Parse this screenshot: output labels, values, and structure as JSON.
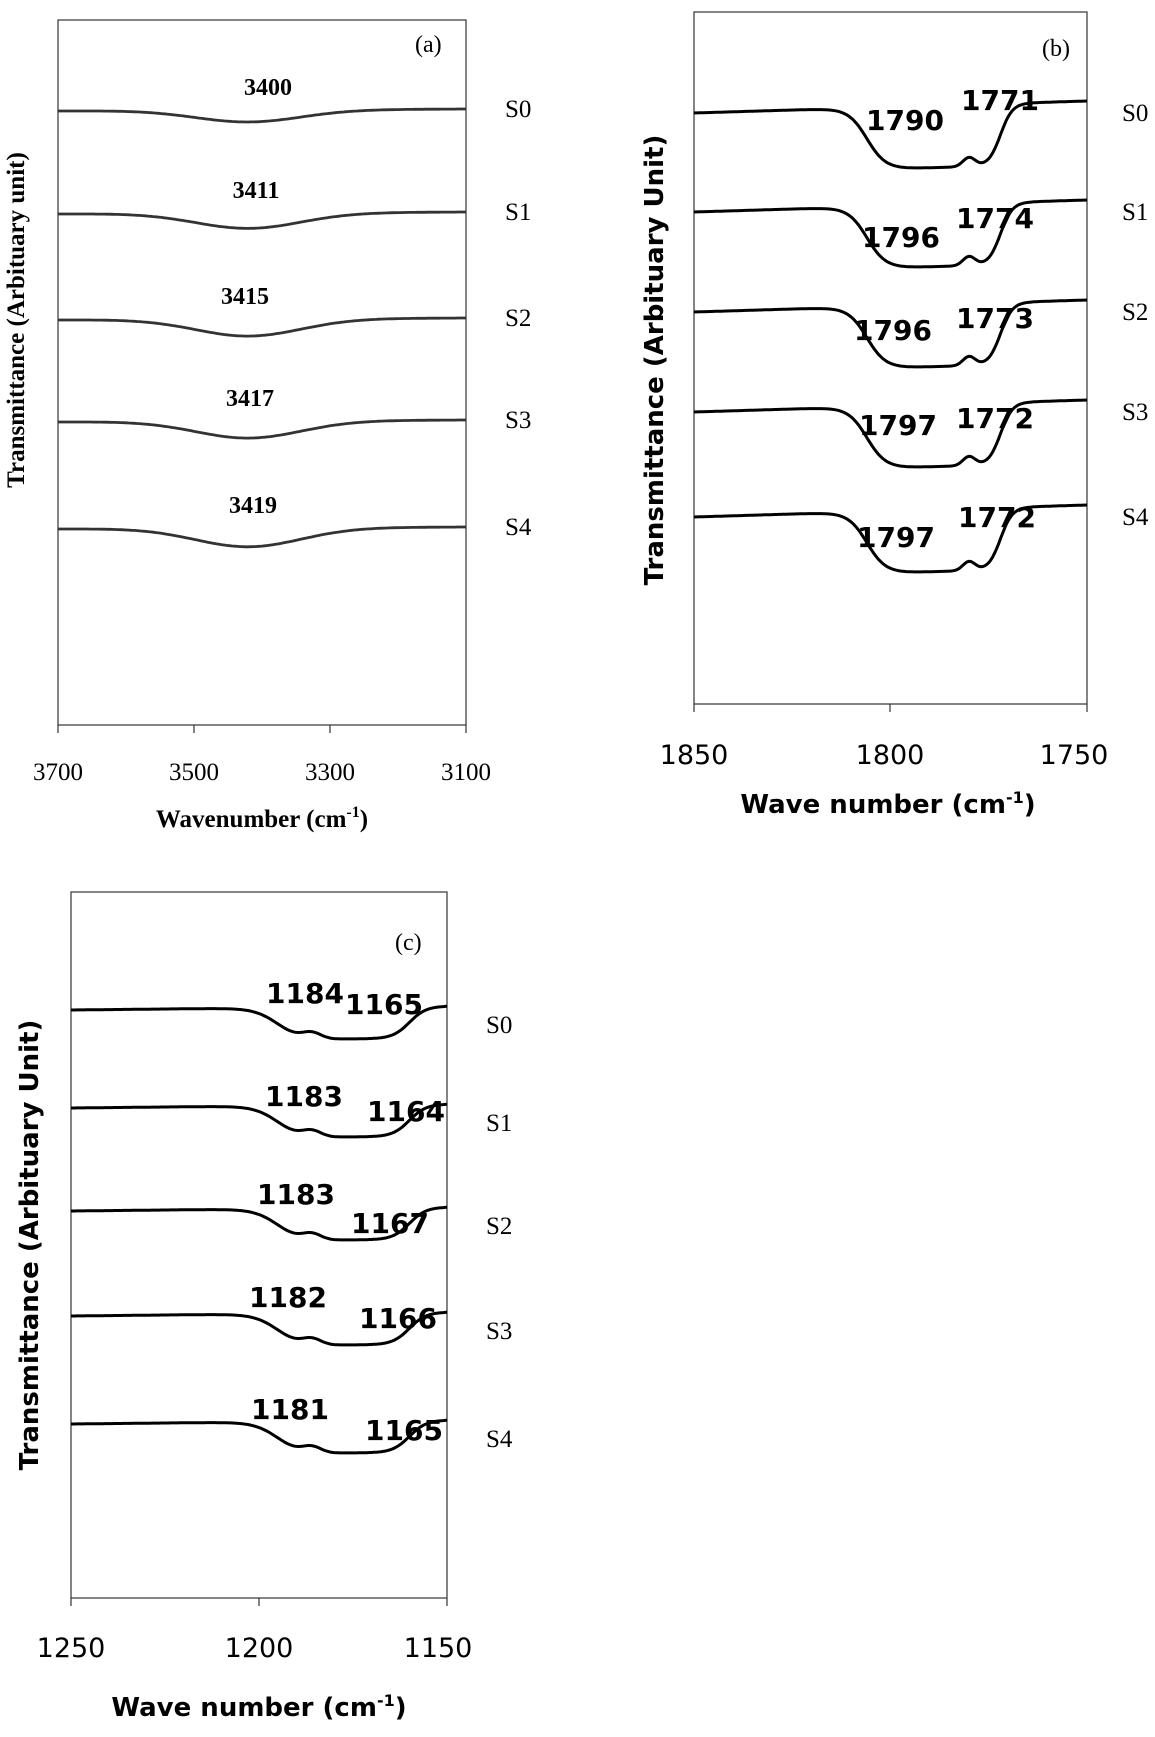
{
  "chart_data": [
    {
      "type": "line",
      "panel_label": "(a)",
      "xlabel": "Wavenumber (cm",
      "xlabel_sup": "-1",
      "xlabel_tail": ")",
      "ylabel": "Transmittance (Arbituary unit)",
      "xlim": [
        3700,
        3100
      ],
      "x_ticks": [
        "3700",
        "3500",
        "3300",
        "3100"
      ],
      "series": [
        {
          "name": "S0",
          "peak": "3400",
          "dip_center": 3420,
          "dip_width": 110,
          "depth": 0.7
        },
        {
          "name": "S1",
          "peak": "3411",
          "dip_center": 3420,
          "dip_width": 110,
          "depth": 0.9
        },
        {
          "name": "S2",
          "peak": "3415",
          "dip_center": 3420,
          "dip_width": 110,
          "depth": 1.0
        },
        {
          "name": "S3",
          "peak": "3417",
          "dip_center": 3420,
          "dip_width": 110,
          "depth": 1.0
        },
        {
          "name": "S4",
          "peak": "3419",
          "dip_center": 3420,
          "dip_width": 110,
          "depth": 1.1
        }
      ]
    },
    {
      "type": "line",
      "panel_label": "(b)",
      "xlabel": "Wave number (cm",
      "xlabel_sup": "-1",
      "xlabel_tail": ")",
      "ylabel": "Transmittance (Arbituary Unit)",
      "xlim": [
        1850,
        1750
      ],
      "x_ticks": [
        "1850",
        "1800",
        "1750"
      ],
      "series": [
        {
          "name": "S0",
          "peak_1": "1790",
          "peak_2": "1771"
        },
        {
          "name": "S1",
          "peak_1": "1796",
          "peak_2": "1774"
        },
        {
          "name": "S2",
          "peak_1": "1796",
          "peak_2": "1773"
        },
        {
          "name": "S3",
          "peak_1": "1797",
          "peak_2": "1772"
        },
        {
          "name": "S4",
          "peak_1": "1797",
          "peak_2": "1772"
        }
      ]
    },
    {
      "type": "line",
      "panel_label": "(c)",
      "xlabel": "Wave number (cm",
      "xlabel_sup": "-1",
      "xlabel_tail": ")",
      "ylabel": "Transmittance (Arbituary Unit)",
      "xlim": [
        1250,
        1150
      ],
      "x_ticks": [
        "1250",
        "1200",
        "1150"
      ],
      "series": [
        {
          "name": "S0",
          "peak_1": "1184",
          "peak_2": "1165"
        },
        {
          "name": "S1",
          "peak_1": "1183",
          "peak_2": "1164"
        },
        {
          "name": "S2",
          "peak_1": "1183",
          "peak_2": "1167"
        },
        {
          "name": "S3",
          "peak_1": "1182",
          "peak_2": "1166"
        },
        {
          "name": "S4",
          "peak_1": "1181",
          "peak_2": "1165"
        }
      ]
    }
  ]
}
